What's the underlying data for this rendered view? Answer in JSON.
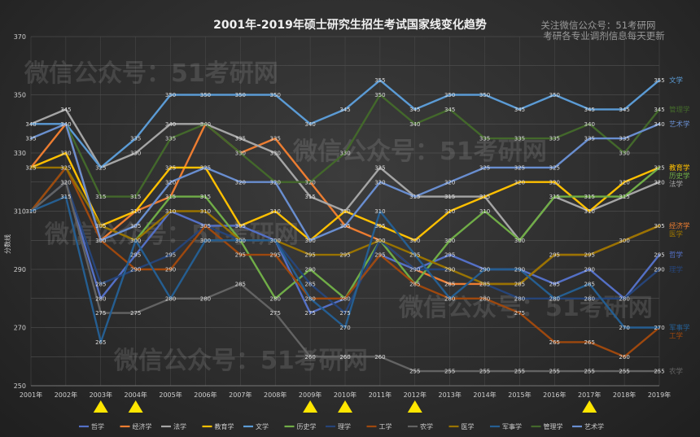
{
  "chart_data": {
    "type": "line",
    "title": "2001年-2019年硕士研究生招生考试国家线变化趋势",
    "ylabel": "分数线",
    "xlabel": "",
    "ylim": [
      250,
      370
    ],
    "y_ticks": [
      250,
      270,
      290,
      310,
      330,
      350,
      370
    ],
    "grid": true,
    "legend_position": "bottom",
    "categories": [
      "2001年",
      "2002年",
      "2003年",
      "2004年",
      "2005年",
      "2006年",
      "2007年",
      "2008年",
      "2009年",
      "2010年",
      "2011年",
      "2012年",
      "2013年",
      "2014年",
      "2015年",
      "2016年",
      "2017年",
      "2018年",
      "2019年"
    ],
    "highlight_years": [
      "2003年",
      "2004年",
      "2009年",
      "2010年",
      "2012年",
      "2017年"
    ],
    "series": [
      {
        "name": "哲学",
        "color": "#5470c6",
        "values": [
          310,
          320,
          280,
          295,
          310,
          305,
          305,
          300,
          275,
          280,
          295,
          290,
          295,
          290,
          290,
          285,
          290,
          280,
          295
        ]
      },
      {
        "name": "经济学",
        "color": "#ed7d31",
        "values": [
          325,
          340,
          300,
          310,
          315,
          340,
          330,
          335,
          320,
          305,
          300,
          290,
          285,
          285,
          285,
          295,
          295,
          300,
          305
        ]
      },
      {
        "name": "法学",
        "color": "#a5a5a5",
        "values": [
          340,
          345,
          325,
          330,
          340,
          340,
          335,
          330,
          315,
          310,
          325,
          315,
          315,
          315,
          300,
          315,
          310,
          315,
          320
        ]
      },
      {
        "name": "教育学",
        "color": "#ffc000",
        "values": [
          325,
          330,
          305,
          310,
          325,
          325,
          305,
          310,
          300,
          310,
          305,
          300,
          310,
          315,
          320,
          320,
          310,
          320,
          325
        ]
      },
      {
        "name": "文学",
        "color": "#5b9bd5",
        "values": [
          340,
          340,
          325,
          335,
          350,
          350,
          350,
          350,
          340,
          345,
          355,
          345,
          350,
          350,
          345,
          350,
          345,
          345,
          355
        ]
      },
      {
        "name": "历史学",
        "color": "#70ad47",
        "values": [
          310,
          325,
          305,
          300,
          315,
          315,
          300,
          280,
          290,
          280,
          300,
          285,
          300,
          310,
          300,
          315,
          315,
          315,
          325
        ]
      },
      {
        "name": "理学",
        "color": "#264478",
        "values": [
          310,
          320,
          285,
          290,
          295,
          305,
          300,
          300,
          285,
          275,
          300,
          290,
          290,
          285,
          280,
          280,
          280,
          280,
          290
        ]
      },
      {
        "name": "工学",
        "color": "#9e480e",
        "values": [
          310,
          325,
          300,
          290,
          290,
          305,
          295,
          295,
          280,
          280,
          295,
          285,
          280,
          280,
          275,
          265,
          265,
          260,
          270
        ]
      },
      {
        "name": "农学",
        "color": "#636363",
        "values": [
          310,
          320,
          275,
          275,
          280,
          280,
          285,
          275,
          260,
          260,
          260,
          255,
          255,
          255,
          255,
          255,
          255,
          255,
          255
        ]
      },
      {
        "name": "医学",
        "color": "#997300",
        "values": [
          325,
          325,
          305,
          300,
          310,
          310,
          300,
          300,
          295,
          295,
          300,
          295,
          290,
          285,
          285,
          295,
          295,
          300,
          305
        ]
      },
      {
        "name": "军事学",
        "color": "#255e91",
        "values": [
          310,
          315,
          265,
          300,
          280,
          300,
          300,
          300,
          280,
          270,
          310,
          295,
          280,
          290,
          290,
          280,
          285,
          270,
          270
        ]
      },
      {
        "name": "管理学",
        "color": "#43682b",
        "values": [
          335,
          340,
          315,
          315,
          335,
          340,
          330,
          320,
          320,
          330,
          350,
          340,
          345,
          335,
          335,
          335,
          340,
          330,
          345
        ]
      },
      {
        "name": "艺术学",
        "color": "#698ed0",
        "values": [
          335,
          340,
          300,
          305,
          320,
          325,
          320,
          320,
          300,
          305,
          320,
          315,
          320,
          325,
          325,
          325,
          335,
          335,
          340
        ]
      }
    ],
    "end_labels": [
      {
        "series": "文学",
        "text": "文学"
      },
      {
        "series": "管理学",
        "text": "管理学"
      },
      {
        "series": "经济学",
        "text": "经济学"
      },
      {
        "series": "艺术学",
        "text": "艺术学"
      },
      {
        "series": "教育学",
        "text": "教育学"
      },
      {
        "series": "历史学",
        "text": "历史学"
      },
      {
        "series": "法学",
        "text": "法学"
      },
      {
        "series": "医学",
        "text": "医学"
      },
      {
        "series": "哲学",
        "text": "哲学"
      },
      {
        "series": "理学",
        "text": "理学"
      },
      {
        "series": "军事学",
        "text": "军事学"
      },
      {
        "series": "工学",
        "text": "工学"
      },
      {
        "series": "农学",
        "text": "农学"
      }
    ]
  },
  "watermark": {
    "line1": "关注微信公众号：51考研网",
    "line2": "考研各专业调剂信息每天更新",
    "overlay": "微信公众号：51考研网"
  }
}
